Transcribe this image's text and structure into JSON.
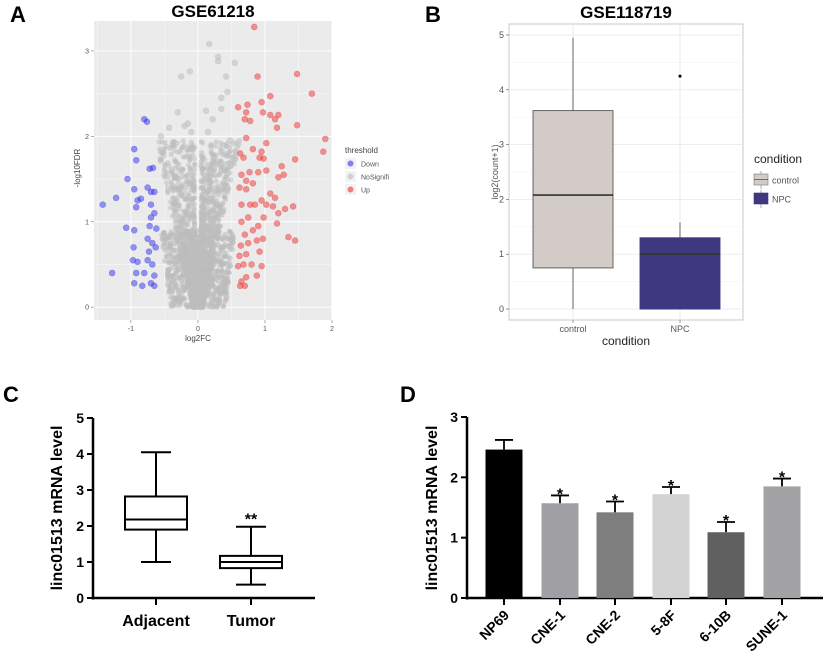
{
  "chart_data": [
    {
      "panel": "A",
      "type": "scatter",
      "title": "GSE61218",
      "xlabel": "log2FC",
      "ylabel": "-log10FDR",
      "xlim": [
        -1.55,
        2.0
      ],
      "ylim": [
        -0.15,
        3.35
      ],
      "xticks": [
        "-1",
        "0",
        "1",
        "2"
      ],
      "yticks": [
        "0",
        "1",
        "2",
        "3"
      ],
      "grid": true,
      "legend": {
        "title": "threshold",
        "position": "right",
        "entries": [
          "Down",
          "NoSignifi",
          "Up"
        ]
      },
      "colors": {
        "Down": "#3333ee",
        "NoSignifi": "#bdbdbd",
        "Up": "#ee3333"
      },
      "series": [
        {
          "name": "Down",
          "points": [
            [
              -0.8,
              2.2
            ],
            [
              -0.76,
              2.17
            ],
            [
              -0.95,
              1.85
            ],
            [
              -0.92,
              1.72
            ],
            [
              -1.05,
              1.5
            ],
            [
              -0.95,
              1.38
            ],
            [
              -1.22,
              1.28
            ],
            [
              -1.42,
              1.2
            ],
            [
              -0.9,
              1.25
            ],
            [
              -0.92,
              1.17
            ],
            [
              -0.85,
              1.27
            ],
            [
              -0.75,
              1.4
            ],
            [
              -0.7,
              1.35
            ],
            [
              -0.65,
              1.35
            ],
            [
              -0.72,
              1.62
            ],
            [
              -0.67,
              1.63
            ],
            [
              -0.7,
              1.2
            ],
            [
              -0.65,
              1.1
            ],
            [
              -1.07,
              0.93
            ],
            [
              -0.95,
              0.9
            ],
            [
              -0.72,
              0.95
            ],
            [
              -0.75,
              0.8
            ],
            [
              -0.68,
              0.75
            ],
            [
              -0.63,
              0.7
            ],
            [
              -0.96,
              0.7
            ],
            [
              -0.97,
              0.55
            ],
            [
              -0.9,
              0.53
            ],
            [
              -0.75,
              0.55
            ],
            [
              -0.68,
              0.5
            ],
            [
              -1.28,
              0.4
            ],
            [
              -0.92,
              0.4
            ],
            [
              -0.8,
              0.4
            ],
            [
              -0.65,
              0.37
            ],
            [
              -0.95,
              0.28
            ],
            [
              -0.83,
              0.25
            ],
            [
              -0.7,
              0.28
            ],
            [
              -0.65,
              0.25
            ],
            [
              -0.7,
              1.05
            ],
            [
              -0.62,
              0.92
            ],
            [
              -0.73,
              0.65
            ]
          ]
        },
        {
          "name": "NoSignifi",
          "summary": "dense V-shaped cloud centred at log2FC 0, spanning roughly -0.6 to 0.6, -log10FDR 0 to ~3.1",
          "points": [
            [
              0.17,
              3.08
            ],
            [
              0.3,
              2.93
            ],
            [
              0.3,
              2.88
            ],
            [
              -0.12,
              2.76
            ],
            [
              -0.25,
              2.7
            ],
            [
              0.55,
              2.86
            ],
            [
              0.42,
              2.7
            ],
            [
              0.44,
              2.52
            ],
            [
              0.35,
              2.45
            ],
            [
              -0.3,
              2.28
            ],
            [
              0.12,
              2.3
            ],
            [
              0.35,
              2.32
            ],
            [
              -0.15,
              2.15
            ],
            [
              -0.2,
              2.12
            ],
            [
              -0.43,
              2.1
            ],
            [
              -0.55,
              2.0
            ],
            [
              0.48,
              1.95
            ],
            [
              0.22,
              2.2
            ],
            [
              0.15,
              2.05
            ],
            [
              -0.1,
              2.05
            ]
          ]
        },
        {
          "name": "Up",
          "points": [
            [
              0.84,
              3.28
            ],
            [
              0.89,
              2.7
            ],
            [
              1.48,
              2.73
            ],
            [
              1.7,
              2.5
            ],
            [
              1.08,
              2.47
            ],
            [
              0.6,
              2.34
            ],
            [
              0.74,
              2.37
            ],
            [
              0.95,
              2.4
            ],
            [
              0.97,
              2.28
            ],
            [
              1.08,
              2.25
            ],
            [
              1.15,
              2.2
            ],
            [
              1.2,
              2.25
            ],
            [
              0.72,
              2.28
            ],
            [
              0.7,
              2.2
            ],
            [
              0.78,
              2.18
            ],
            [
              1.48,
              2.13
            ],
            [
              1.18,
              2.1
            ],
            [
              1.9,
              1.97
            ],
            [
              1.87,
              1.82
            ],
            [
              0.72,
              1.98
            ],
            [
              0.82,
              1.85
            ],
            [
              1.02,
              1.92
            ],
            [
              0.95,
              1.82
            ],
            [
              0.63,
              1.8
            ],
            [
              0.68,
              1.75
            ],
            [
              0.92,
              1.75
            ],
            [
              0.98,
              1.74
            ],
            [
              1.45,
              1.73
            ],
            [
              1.25,
              1.65
            ],
            [
              1.28,
              1.55
            ],
            [
              1.2,
              1.52
            ],
            [
              1.02,
              1.6
            ],
            [
              0.9,
              1.58
            ],
            [
              0.77,
              1.58
            ],
            [
              0.65,
              1.55
            ],
            [
              0.72,
              1.48
            ],
            [
              0.82,
              1.45
            ],
            [
              0.62,
              1.4
            ],
            [
              0.72,
              1.38
            ],
            [
              1.08,
              1.33
            ],
            [
              1.15,
              1.28
            ],
            [
              0.95,
              1.25
            ],
            [
              0.85,
              1.2
            ],
            [
              1.42,
              1.18
            ],
            [
              1.3,
              1.15
            ],
            [
              1.12,
              1.18
            ],
            [
              1.02,
              1.2
            ],
            [
              0.78,
              1.2
            ],
            [
              0.65,
              1.2
            ],
            [
              1.2,
              1.1
            ],
            [
              0.98,
              1.05
            ],
            [
              0.75,
              1.05
            ],
            [
              0.65,
              1.0
            ],
            [
              1.18,
              0.98
            ],
            [
              0.9,
              0.95
            ],
            [
              0.82,
              0.9
            ],
            [
              0.7,
              0.85
            ],
            [
              1.35,
              0.82
            ],
            [
              1.45,
              0.78
            ],
            [
              0.97,
              0.8
            ],
            [
              0.88,
              0.78
            ],
            [
              0.75,
              0.75
            ],
            [
              0.64,
              0.72
            ],
            [
              0.92,
              0.65
            ],
            [
              0.72,
              0.62
            ],
            [
              0.62,
              0.6
            ],
            [
              0.95,
              0.48
            ],
            [
              0.8,
              0.5
            ],
            [
              0.68,
              0.5
            ],
            [
              0.6,
              0.48
            ],
            [
              0.88,
              0.37
            ],
            [
              0.72,
              0.35
            ],
            [
              0.65,
              0.3
            ],
            [
              0.7,
              0.25
            ],
            [
              0.63,
              0.25
            ]
          ]
        }
      ]
    },
    {
      "panel": "B",
      "type": "box",
      "title": "GSE118719",
      "xlabel": "condition",
      "ylabel": "log2(count+1)",
      "categories": [
        "control",
        "NPC"
      ],
      "ylim": [
        -0.2,
        5.2
      ],
      "yticks": [
        "0",
        "1",
        "2",
        "3",
        "4",
        "5"
      ],
      "grid": true,
      "legend": {
        "title": "condition",
        "position": "right",
        "entries": [
          "control",
          "NPC"
        ]
      },
      "series": [
        {
          "name": "control",
          "min": 0.0,
          "q1": 0.75,
          "median": 2.08,
          "q3": 3.62,
          "max": 4.95,
          "outliers": [],
          "color": "#d3cbc8"
        },
        {
          "name": "NPC",
          "min": 0.0,
          "q1": 0.0,
          "median": 1.0,
          "q3": 1.3,
          "max": 1.58,
          "outliers": [
            4.25
          ],
          "color": "#3d3880"
        }
      ]
    },
    {
      "panel": "C",
      "type": "box",
      "title": "",
      "xlabel": "",
      "ylabel": "linc01513 mRNA level",
      "categories": [
        "Adjacent",
        "Tumor"
      ],
      "ylim": [
        0,
        5
      ],
      "yticks": [
        "0",
        "1",
        "2",
        "3",
        "4",
        "5"
      ],
      "grid": false,
      "series": [
        {
          "name": "Adjacent",
          "min": 1.0,
          "q1": 1.9,
          "median": 2.18,
          "q3": 2.82,
          "max": 4.05,
          "annotation": ""
        },
        {
          "name": "Tumor",
          "min": 0.37,
          "q1": 0.83,
          "median": 1.0,
          "q3": 1.17,
          "max": 1.98,
          "annotation": "**"
        }
      ]
    },
    {
      "panel": "D",
      "type": "bar",
      "title": "",
      "xlabel": "",
      "ylabel": "linc01513 mRNA level",
      "categories": [
        "NP69",
        "CNE-1",
        "CNE-2",
        "5-8F",
        "6-10B",
        "SUNE-1"
      ],
      "values": [
        2.46,
        1.57,
        1.42,
        1.72,
        1.09,
        1.85
      ],
      "errors": [
        0.16,
        0.13,
        0.18,
        0.12,
        0.17,
        0.13
      ],
      "annotations": [
        "",
        "*",
        "*",
        "*",
        "*",
        "*"
      ],
      "colors": [
        "#000000",
        "#a0a0a4",
        "#7e7e7e",
        "#d3d3d3",
        "#606060",
        "#a3a3a6"
      ],
      "ylim": [
        0,
        3
      ],
      "yticks": [
        "0",
        "1",
        "2",
        "3"
      ],
      "grid": false
    }
  ],
  "panel_labels": [
    "A",
    "B",
    "C",
    "D"
  ]
}
